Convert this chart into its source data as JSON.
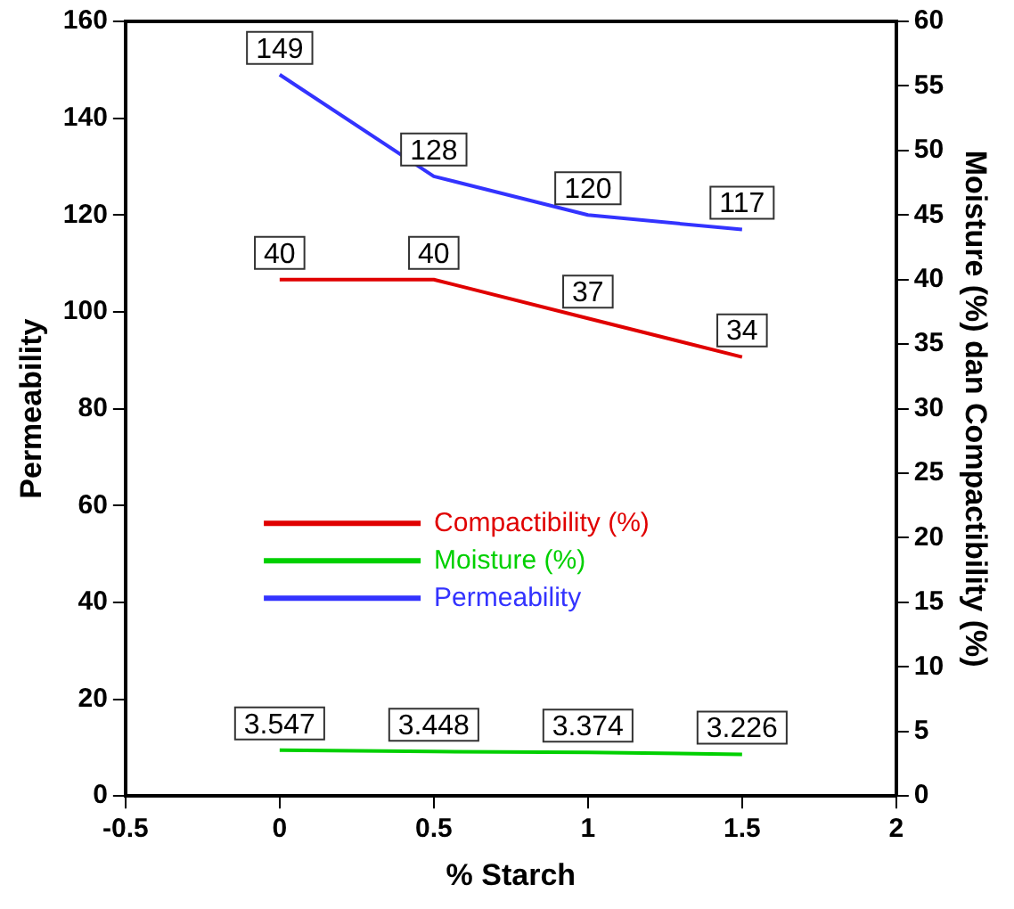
{
  "chart_data": {
    "type": "line",
    "xlabel": "% Starch",
    "ylabel": "Permeability",
    "y2label": "Moisture (%) dan Compactibility (%)",
    "x": [
      0,
      0.5,
      1,
      1.5
    ],
    "series": [
      {
        "name": "Compactibility (%)",
        "color": "#e00000",
        "values": [
          40,
          40,
          37,
          34
        ],
        "axis": "y2"
      },
      {
        "name": "Moisture (%)",
        "color": "#00d000",
        "values": [
          3.547,
          3.448,
          3.374,
          3.226
        ],
        "axis": "y2"
      },
      {
        "name": "Permeability",
        "color": "#3333ff",
        "values": [
          149,
          128,
          120,
          117
        ]
      }
    ],
    "xlim": [
      -0.5,
      2
    ],
    "xticks": [
      -0.5,
      0,
      0.5,
      1,
      1.5,
      2
    ],
    "ylim": [
      0,
      160
    ],
    "yticks": [
      0,
      20,
      40,
      60,
      80,
      100,
      120,
      140,
      160
    ],
    "y2lim": [
      0,
      60
    ],
    "y2ticks": [
      0,
      5,
      10,
      15,
      20,
      25,
      30,
      35,
      40,
      45,
      50,
      55,
      60
    ],
    "data_labels": true,
    "legend": "bottom left",
    "marker": "none",
    "line_style": "solid",
    "grid": false
  }
}
